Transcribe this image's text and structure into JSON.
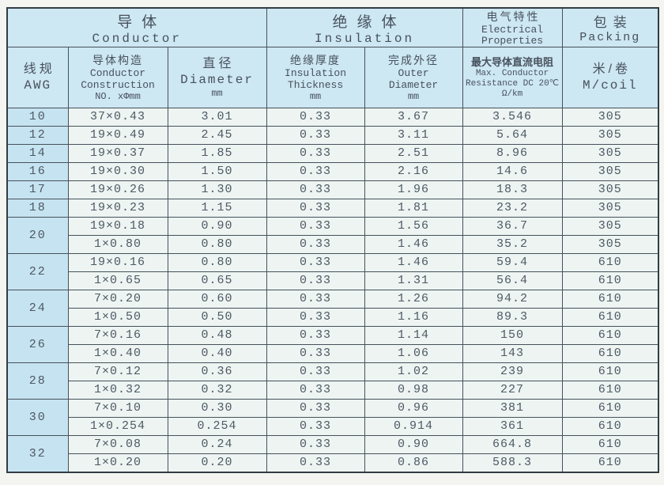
{
  "document_title": "AWG wire specification table",
  "colors": {
    "header_bg": "#cde7f3",
    "awg_column_bg": "#c6e3f1",
    "cell_bg": "#edf4f2",
    "border": "#46525a",
    "text": "#47525d"
  },
  "table": {
    "group_header": [
      {
        "key": "conductor",
        "zh": "导体",
        "en_lines": [
          "Conductor"
        ],
        "colspan": 3
      },
      {
        "key": "insulation",
        "zh": "绝缘体",
        "en_lines": [
          "Insulation"
        ],
        "colspan": 2
      },
      {
        "key": "electrical",
        "zh": "电气特性",
        "en_lines": [
          "Electrical",
          "Properties"
        ],
        "colspan": 1
      },
      {
        "key": "packing",
        "zh": "包装",
        "en_lines": [
          "Packing"
        ],
        "colspan": 1
      }
    ],
    "columns": [
      {
        "key": "awg",
        "zh": "线规",
        "en_lines": [
          "AWG"
        ],
        "unit": ""
      },
      {
        "key": "construction",
        "zh": "导体构造",
        "en_lines": [
          "Conductor",
          "Construction"
        ],
        "unit": "NO. xΦmm"
      },
      {
        "key": "diameter",
        "zh": "直径",
        "en_lines": [
          "Diameter"
        ],
        "unit": "mm"
      },
      {
        "key": "insulation-thickness",
        "zh": "绝缘厚度",
        "en_lines": [
          "Insulation",
          "Thickness"
        ],
        "unit": "mm"
      },
      {
        "key": "outer-diameter",
        "zh": "完成外径",
        "en_lines": [
          "Outer",
          "Diameter"
        ],
        "unit": "mm"
      },
      {
        "key": "resistance",
        "zh": "最大导体直流电阻",
        "en_lines": [
          "Max. Conductor",
          "Resistance DC 20℃"
        ],
        "unit": "Ω/km"
      },
      {
        "key": "packing",
        "zh": "米/卷",
        "en_lines": [
          "M/coil"
        ],
        "unit": ""
      }
    ],
    "groups": [
      {
        "awg": "10",
        "entries": [
          [
            "37×0.43",
            "3.01",
            "0.33",
            "3.67",
            "3.546",
            "305"
          ]
        ]
      },
      {
        "awg": "12",
        "entries": [
          [
            "19×0.49",
            "2.45",
            "0.33",
            "3.11",
            "5.64",
            "305"
          ]
        ]
      },
      {
        "awg": "14",
        "entries": [
          [
            "19×0.37",
            "1.85",
            "0.33",
            "2.51",
            "8.96",
            "305"
          ]
        ]
      },
      {
        "awg": "16",
        "entries": [
          [
            "19×0.30",
            "1.50",
            "0.33",
            "2.16",
            "14.6",
            "305"
          ]
        ]
      },
      {
        "awg": "17",
        "entries": [
          [
            "19×0.26",
            "1.30",
            "0.33",
            "1.96",
            "18.3",
            "305"
          ]
        ]
      },
      {
        "awg": "18",
        "entries": [
          [
            "19×0.23",
            "1.15",
            "0.33",
            "1.81",
            "23.2",
            "305"
          ]
        ]
      },
      {
        "awg": "20",
        "entries": [
          [
            "19×0.18",
            "0.90",
            "0.33",
            "1.56",
            "36.7",
            "305"
          ],
          [
            "1×0.80",
            "0.80",
            "0.33",
            "1.46",
            "35.2",
            "305"
          ]
        ]
      },
      {
        "awg": "22",
        "entries": [
          [
            "19×0.16",
            "0.80",
            "0.33",
            "1.46",
            "59.4",
            "610"
          ],
          [
            "1×0.65",
            "0.65",
            "0.33",
            "1.31",
            "56.4",
            "610"
          ]
        ]
      },
      {
        "awg": "24",
        "entries": [
          [
            "7×0.20",
            "0.60",
            "0.33",
            "1.26",
            "94.2",
            "610"
          ],
          [
            "1×0.50",
            "0.50",
            "0.33",
            "1.16",
            "89.3",
            "610"
          ]
        ]
      },
      {
        "awg": "26",
        "entries": [
          [
            "7×0.16",
            "0.48",
            "0.33",
            "1.14",
            "150",
            "610"
          ],
          [
            "1×0.40",
            "0.40",
            "0.33",
            "1.06",
            "143",
            "610"
          ]
        ]
      },
      {
        "awg": "28",
        "entries": [
          [
            "7×0.12",
            "0.36",
            "0.33",
            "1.02",
            "239",
            "610"
          ],
          [
            "1×0.32",
            "0.32",
            "0.33",
            "0.98",
            "227",
            "610"
          ]
        ]
      },
      {
        "awg": "30",
        "entries": [
          [
            "7×0.10",
            "0.30",
            "0.33",
            "0.96",
            "381",
            "610"
          ],
          [
            "1×0.254",
            "0.254",
            "0.33",
            "0.914",
            "361",
            "610"
          ]
        ]
      },
      {
        "awg": "32",
        "entries": [
          [
            "7×0.08",
            "0.24",
            "0.33",
            "0.90",
            "664.8",
            "610"
          ],
          [
            "1×0.20",
            "0.20",
            "0.33",
            "0.86",
            "588.3",
            "610"
          ]
        ]
      }
    ]
  }
}
